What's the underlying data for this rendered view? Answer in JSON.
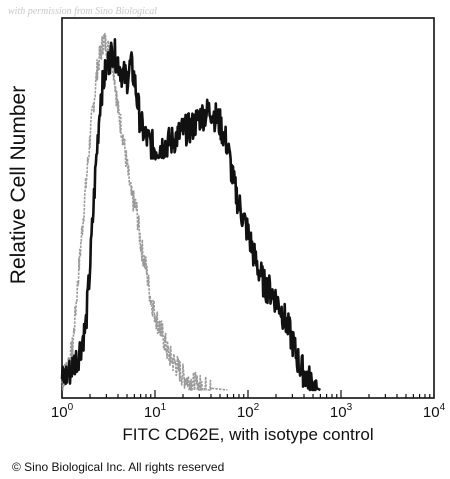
{
  "watermark": "with permission from Sino Biological",
  "copyright": "© Sino Biological Inc. All rights reserved",
  "chart_data": {
    "type": "line",
    "title": "",
    "xlabel": "FITC  CD62E,  with isotype control",
    "ylabel": "Relative Cell Number",
    "x_scale": "log",
    "xlim": [
      1,
      10000
    ],
    "ylim": [
      0,
      100
    ],
    "grid": false,
    "legend": "none",
    "x_ticks": [
      {
        "value": 1,
        "base": "10",
        "exp": "0"
      },
      {
        "value": 10,
        "base": "10",
        "exp": "1"
      },
      {
        "value": 100,
        "base": "10",
        "exp": "2"
      },
      {
        "value": 1000,
        "base": "10",
        "exp": "3"
      },
      {
        "value": 10000,
        "base": "10",
        "exp": "4"
      }
    ],
    "series": [
      {
        "role": "isotype control",
        "color": "#9a9a9a",
        "x": [
          1.0,
          1.3,
          1.6,
          2.0,
          2.4,
          2.8,
          3.2,
          3.6,
          4.0,
          4.5,
          5.0,
          5.6,
          6.3,
          7.0,
          8.0,
          9.0,
          10.5,
          12,
          14,
          17,
          20,
          25,
          30,
          40,
          60
        ],
        "y": [
          2,
          12,
          42,
          72,
          92,
          100,
          97,
          92,
          80,
          73,
          64,
          55,
          52,
          42,
          35,
          26,
          20,
          16,
          10,
          7,
          4,
          2,
          1,
          0.5,
          0
        ]
      },
      {
        "role": "CD62E",
        "color": "#111111",
        "x": [
          1.0,
          1.2,
          1.5,
          1.8,
          2.0,
          2.3,
          2.6,
          3.0,
          3.5,
          4.0,
          4.5,
          5.0,
          5.5,
          6.0,
          7.0,
          8.0,
          10,
          12,
          15,
          20,
          25,
          30,
          35,
          40,
          50,
          60,
          70,
          80,
          100,
          120,
          150,
          180,
          220,
          260,
          300,
          330,
          360,
          400,
          450,
          500,
          600
        ],
        "y": [
          3,
          5,
          10,
          18,
          35,
          63,
          84,
          92,
          97,
          94,
          90,
          89,
          93,
          89,
          76,
          72,
          69,
          70,
          71,
          74,
          75,
          78,
          79,
          80,
          76,
          70,
          59,
          53,
          45,
          37,
          30,
          28,
          24,
          19,
          14,
          10,
          7,
          5,
          3,
          1,
          0
        ]
      }
    ]
  }
}
